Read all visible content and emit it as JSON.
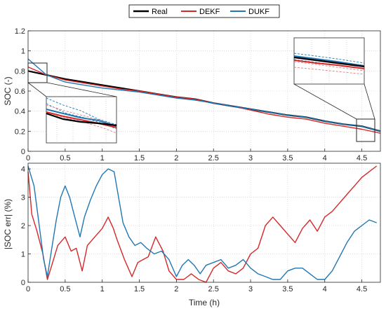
{
  "legend": {
    "items": [
      {
        "label": "Real",
        "color": "#000000"
      },
      {
        "label": "DEKF",
        "color": "#d62728"
      },
      {
        "label": "DUKF",
        "color": "#1f77b4"
      }
    ]
  },
  "chart_data": [
    {
      "type": "line",
      "ylabel": "SOC (-)",
      "xlabel": "",
      "xlim": [
        0,
        4.75
      ],
      "ylim": [
        0,
        1.2
      ],
      "xticks": [
        "0",
        "0.5",
        "1",
        "1.5",
        "2",
        "2.5",
        "3",
        "3.5",
        "4",
        "4.5"
      ],
      "yticks": [
        "0",
        "0.2",
        "0.4",
        "0.6",
        "0.8",
        "1",
        "1.2"
      ],
      "grid": true,
      "series": [
        {
          "name": "Real",
          "color": "#000000",
          "x": [
            0,
            0.25,
            0.5,
            0.75,
            1.0,
            1.25,
            1.5,
            1.75,
            2.0,
            2.25,
            2.5,
            2.75,
            3.0,
            3.25,
            3.5,
            3.75,
            4.0,
            4.25,
            4.5,
            4.75
          ],
          "y": [
            0.8,
            0.76,
            0.72,
            0.69,
            0.66,
            0.63,
            0.6,
            0.57,
            0.54,
            0.52,
            0.48,
            0.45,
            0.42,
            0.39,
            0.36,
            0.34,
            0.3,
            0.27,
            0.25,
            0.2
          ]
        },
        {
          "name": "DEKF",
          "color": "#d62728",
          "x": [
            0,
            0.25,
            0.5,
            0.75,
            1.0,
            1.25,
            1.5,
            1.75,
            2.0,
            2.25,
            2.5,
            2.75,
            3.0,
            3.25,
            3.5,
            3.75,
            4.0,
            4.25,
            4.5,
            4.75
          ],
          "y": [
            0.84,
            0.76,
            0.71,
            0.68,
            0.65,
            0.62,
            0.6,
            0.57,
            0.54,
            0.52,
            0.48,
            0.45,
            0.41,
            0.37,
            0.34,
            0.32,
            0.28,
            0.25,
            0.22,
            0.18
          ]
        },
        {
          "name": "DUKF",
          "color": "#1f77b4",
          "x": [
            0,
            0.25,
            0.5,
            0.75,
            1.0,
            1.25,
            1.5,
            1.75,
            2.0,
            2.25,
            2.5,
            2.75,
            3.0,
            3.25,
            3.5,
            3.75,
            4.0,
            4.25,
            4.5,
            4.75
          ],
          "y": [
            0.92,
            0.76,
            0.69,
            0.66,
            0.63,
            0.61,
            0.59,
            0.56,
            0.53,
            0.51,
            0.48,
            0.45,
            0.42,
            0.39,
            0.36,
            0.34,
            0.3,
            0.27,
            0.25,
            0.2
          ]
        }
      ]
    },
    {
      "type": "line",
      "ylabel": "|SOC err| (%)",
      "xlabel": "Time (h)",
      "xlim": [
        0,
        4.75
      ],
      "ylim": [
        0,
        4.2
      ],
      "xticks": [
        "0",
        "0.5",
        "1",
        "1.5",
        "2",
        "2.5",
        "3",
        "3.5",
        "4",
        "4.5"
      ],
      "yticks": [
        "0",
        "1",
        "2",
        "3",
        "4"
      ],
      "grid": true,
      "series": [
        {
          "name": "DEKF",
          "color": "#d62728",
          "x": [
            0,
            0.05,
            0.12,
            0.2,
            0.26,
            0.32,
            0.4,
            0.5,
            0.58,
            0.65,
            0.73,
            0.8,
            0.9,
            1.0,
            1.08,
            1.15,
            1.2,
            1.3,
            1.4,
            1.48,
            1.55,
            1.62,
            1.72,
            1.82,
            1.9,
            2.0,
            2.1,
            2.2,
            2.3,
            2.4,
            2.5,
            2.6,
            2.7,
            2.8,
            2.9,
            3.0,
            3.1,
            3.2,
            3.3,
            3.4,
            3.5,
            3.6,
            3.7,
            3.8,
            3.9,
            4.0,
            4.1,
            4.2,
            4.3,
            4.4,
            4.5,
            4.6,
            4.7
          ],
          "y": [
            3.9,
            2.4,
            1.8,
            1.0,
            0.1,
            0.6,
            1.3,
            1.6,
            1.1,
            1.2,
            0.4,
            1.3,
            1.6,
            1.9,
            2.3,
            1.9,
            1.5,
            0.8,
            0.2,
            0.7,
            0.8,
            0.9,
            1.6,
            1.1,
            0.4,
            0.1,
            0.1,
            0.3,
            0.1,
            0.0,
            0.5,
            0.7,
            0.4,
            0.3,
            0.5,
            1.0,
            1.2,
            2.0,
            2.3,
            2.0,
            1.7,
            1.4,
            1.9,
            2.2,
            1.8,
            2.3,
            2.5,
            2.8,
            3.1,
            3.4,
            3.7,
            3.9,
            4.1
          ]
        },
        {
          "name": "DUKF",
          "color": "#1f77b4",
          "x": [
            0,
            0.08,
            0.15,
            0.21,
            0.26,
            0.32,
            0.38,
            0.44,
            0.5,
            0.56,
            0.62,
            0.7,
            0.76,
            0.84,
            0.92,
            1.0,
            1.08,
            1.16,
            1.2,
            1.28,
            1.36,
            1.44,
            1.52,
            1.6,
            1.7,
            1.8,
            1.9,
            2.0,
            2.08,
            2.16,
            2.24,
            2.32,
            2.4,
            2.5,
            2.6,
            2.7,
            2.8,
            2.9,
            3.0,
            3.1,
            3.2,
            3.3,
            3.4,
            3.5,
            3.6,
            3.7,
            3.8,
            3.9,
            4.0,
            4.1,
            4.2,
            4.3,
            4.4,
            4.5,
            4.6,
            4.7
          ],
          "y": [
            4.1,
            3.4,
            2.0,
            0.8,
            0.2,
            1.2,
            2.2,
            3.0,
            3.4,
            3.0,
            2.4,
            1.6,
            2.3,
            2.9,
            3.4,
            3.8,
            4.0,
            3.9,
            3.3,
            2.1,
            1.6,
            1.3,
            1.4,
            1.2,
            1.0,
            1.1,
            0.8,
            0.2,
            0.6,
            0.8,
            0.6,
            0.3,
            0.6,
            0.7,
            0.8,
            0.5,
            0.6,
            0.8,
            0.5,
            0.3,
            0.2,
            0.1,
            0.1,
            0.4,
            0.5,
            0.5,
            0.3,
            0.1,
            0.1,
            0.4,
            0.9,
            1.4,
            1.8,
            2.0,
            2.2,
            2.1
          ]
        }
      ]
    }
  ]
}
